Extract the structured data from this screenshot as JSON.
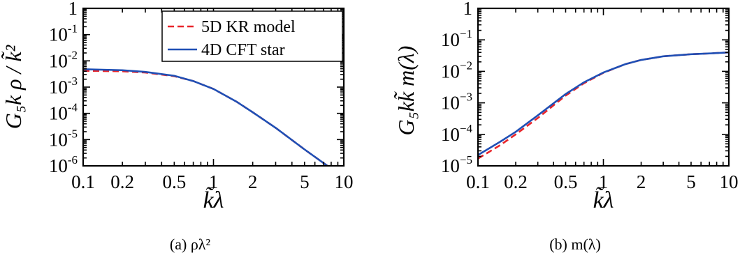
{
  "chart_data": [
    {
      "type": "line",
      "caption": "(a) ρλ²",
      "xlabel": "k̃λ",
      "ylabel": "G₅k ρ / k̃²",
      "xscale": "log",
      "yscale": "log",
      "xlim": [
        0.1,
        10
      ],
      "ylim": [
        1e-06,
        1
      ],
      "x_ticks": [
        0.1,
        0.2,
        0.5,
        1,
        2,
        5,
        10
      ],
      "x_tick_labels": [
        "0.1",
        "0.2",
        "0.5",
        "1",
        "2",
        "5",
        "10"
      ],
      "y_ticks": [
        1e-06,
        1e-05,
        0.0001,
        0.001,
        0.01,
        0.1,
        1
      ],
      "y_tick_labels": [
        {
          "base": "10",
          "exp": "-6"
        },
        {
          "base": "10",
          "exp": "-5"
        },
        {
          "base": "10",
          "exp": "-4"
        },
        {
          "base": "10",
          "exp": "-3"
        },
        {
          "base": "10",
          "exp": "-2"
        },
        {
          "base": "10",
          "exp": "-1"
        },
        {
          "base": "1",
          "exp": ""
        }
      ],
      "legend": {
        "placement": "top-right",
        "entries": [
          {
            "label": "5D KR model",
            "color": "#e8252b",
            "dash": true
          },
          {
            "label": "4D CFT star",
            "color": "#1f4fb5",
            "dash": false
          }
        ]
      },
      "series": [
        {
          "name": "5D KR model",
          "color": "#e8252b",
          "style": "dashed",
          "x": [
            0.1,
            0.2,
            0.3,
            0.5,
            0.7,
            1,
            1.5,
            2,
            3,
            5,
            8
          ],
          "y": [
            0.0042,
            0.004,
            0.0036,
            0.0026,
            0.0017,
            0.00085,
            0.00028,
            0.00011,
            2.8e-05,
            4.2e-06,
            7.9e-07
          ]
        },
        {
          "name": "4D CFT star",
          "color": "#1f4fb5",
          "style": "solid",
          "x": [
            0.1,
            0.2,
            0.3,
            0.5,
            0.7,
            1,
            1.5,
            2,
            3,
            5,
            8
          ],
          "y": [
            0.0048,
            0.0044,
            0.0038,
            0.0027,
            0.0017,
            0.00085,
            0.00028,
            0.00011,
            2.8e-05,
            4.2e-06,
            7.9e-07
          ]
        }
      ]
    },
    {
      "type": "line",
      "caption": "(b) m(λ)",
      "xlabel": "k̃λ",
      "ylabel": "G₅kk̃ m(λ)",
      "xscale": "log",
      "yscale": "log",
      "xlim": [
        0.1,
        10
      ],
      "ylim": [
        1e-05,
        1
      ],
      "x_ticks": [
        0.1,
        0.2,
        0.5,
        1,
        2,
        5,
        10
      ],
      "x_tick_labels": [
        "0.1",
        "0.2",
        "0.5",
        "1",
        "2",
        "5",
        "10"
      ],
      "y_ticks": [
        1e-05,
        0.0001,
        0.001,
        0.01,
        0.1,
        1
      ],
      "y_tick_labels": [
        {
          "base": "10",
          "exp": "−5"
        },
        {
          "base": "10",
          "exp": "−4"
        },
        {
          "base": "10",
          "exp": "−3"
        },
        {
          "base": "10",
          "exp": "−2"
        },
        {
          "base": "10",
          "exp": "−1"
        },
        {
          "base": "1",
          "exp": ""
        }
      ],
      "series": [
        {
          "name": "5D KR model",
          "color": "#e8252b",
          "style": "dashed",
          "x": [
            0.1,
            0.15,
            0.2,
            0.3,
            0.5,
            0.7,
            1,
            1.5,
            2,
            3,
            5,
            7,
            10
          ],
          "y": [
            1.7e-05,
            4.5e-05,
            0.0001,
            0.00033,
            0.0017,
            0.0042,
            0.009,
            0.017,
            0.023,
            0.03,
            0.035,
            0.037,
            0.04
          ]
        },
        {
          "name": "4D CFT star",
          "color": "#1f4fb5",
          "style": "solid",
          "x": [
            0.1,
            0.15,
            0.2,
            0.3,
            0.5,
            0.7,
            1,
            1.5,
            2,
            3,
            5,
            7,
            10
          ],
          "y": [
            2.2e-05,
            5.8e-05,
            0.00012,
            0.0004,
            0.0019,
            0.0045,
            0.0092,
            0.017,
            0.023,
            0.03,
            0.035,
            0.037,
            0.04
          ]
        }
      ]
    }
  ]
}
